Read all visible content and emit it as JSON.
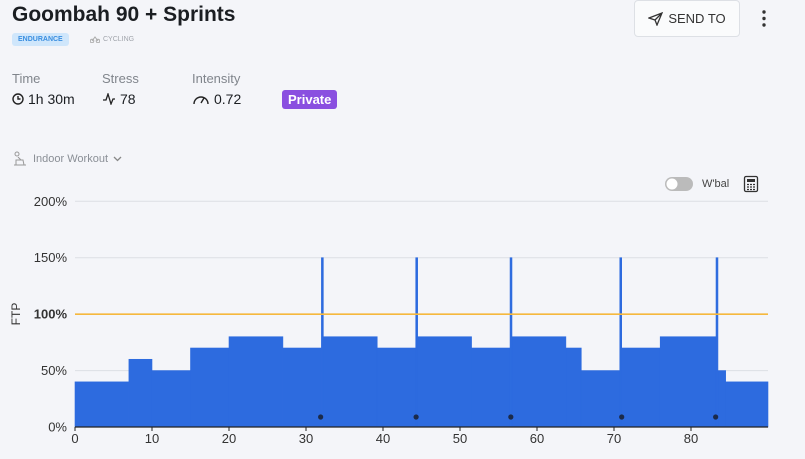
{
  "header": {
    "title": "Goombah 90 + Sprints",
    "tag": "ENDURANCE",
    "sport": "CYCLING",
    "send_button": "SEND TO"
  },
  "stats": [
    {
      "label": "Time",
      "value": "1h 30m"
    },
    {
      "label": "Stress",
      "value": "78"
    },
    {
      "label": "Intensity",
      "value": "0.72"
    }
  ],
  "visibility": "Private",
  "workout_mode": "Indoor Workout",
  "wbal_toggle": "W'bal",
  "chart": {
    "type": "step",
    "y_label": "FTP",
    "color": "#2d6bdf",
    "intervals": [
      {
        "start": 0,
        "end": 7,
        "power": 40
      },
      {
        "start": 7,
        "end": 10,
        "power": 60
      },
      {
        "start": 10,
        "end": 15,
        "power": 50
      },
      {
        "start": 15,
        "end": 20,
        "power": 70
      },
      {
        "start": 20,
        "end": 27,
        "power": 80
      },
      {
        "start": 27,
        "end": 32,
        "power": 70
      },
      {
        "start": 32,
        "end": 32.25,
        "power": 150
      },
      {
        "start": 32.25,
        "end": 39.25,
        "power": 80
      },
      {
        "start": 39.25,
        "end": 44.25,
        "power": 70
      },
      {
        "start": 44.25,
        "end": 44.5,
        "power": 150
      },
      {
        "start": 44.5,
        "end": 51.5,
        "power": 80
      },
      {
        "start": 51.5,
        "end": 56.5,
        "power": 70
      },
      {
        "start": 56.5,
        "end": 56.75,
        "power": 150
      },
      {
        "start": 56.75,
        "end": 63.75,
        "power": 80
      },
      {
        "start": 63.75,
        "end": 65.75,
        "power": 70
      },
      {
        "start": 65.75,
        "end": 70.75,
        "power": 50
      },
      {
        "start": 70.75,
        "end": 71,
        "power": 150
      },
      {
        "start": 71,
        "end": 76,
        "power": 70
      },
      {
        "start": 76,
        "end": 83.25,
        "power": 80
      },
      {
        "start": 83.25,
        "end": 83.5,
        "power": 150
      },
      {
        "start": 83.5,
        "end": 84.5,
        "power": 50
      },
      {
        "start": 84.5,
        "end": 90,
        "power": 40
      }
    ],
    "markers": [
      31.9,
      44.3,
      56.6,
      71,
      83.2
    ],
    "threshold": 100,
    "threshold_color": "#f5b83d",
    "xlim": [
      0,
      90
    ],
    "ylim": [
      0,
      210
    ],
    "xticks": [
      0,
      10,
      20,
      30,
      40,
      50,
      60,
      70,
      80
    ],
    "yticks": [
      {
        "value": 0,
        "label": "0%"
      },
      {
        "value": 50,
        "label": "50%"
      },
      {
        "value": 100,
        "label": "100%"
      },
      {
        "value": 150,
        "label": "150%"
      },
      {
        "value": 200,
        "label": "200%"
      }
    ],
    "grid": true
  }
}
